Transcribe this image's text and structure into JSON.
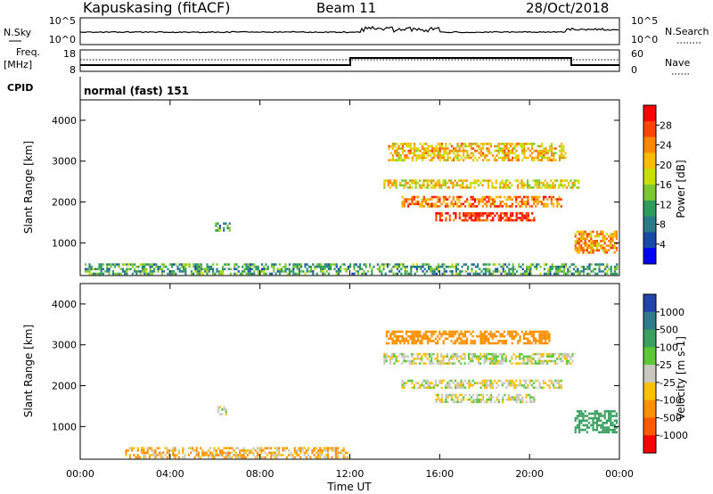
{
  "header": {
    "station": "Kapuskasing (fitACF)",
    "beam": "Beam 11",
    "date": "28/Oct/2018"
  },
  "panels": {
    "nsky_label": "N.Sky",
    "nsearch_label": "N.Search",
    "freq_label": "Freq.",
    "freq_unit": "[MHz]",
    "nave_label": "Nave",
    "cpid_label": "CPID",
    "cpid_value": "normal (fast) 151",
    "nsky_ticks": [
      "10^5",
      "10^0"
    ],
    "nsearch_ticks": [
      "10^5",
      "10^0"
    ],
    "freq_ticks": [
      "18",
      "8"
    ],
    "nave_ticks": [
      "60",
      "0"
    ]
  },
  "colorbars": {
    "power": {
      "label": "Power [dB]",
      "ticks": [
        "28",
        "24",
        "20",
        "16",
        "12",
        "8",
        "4"
      ],
      "colors": [
        "#ff0000",
        "#ff4400",
        "#ff8800",
        "#ffbb00",
        "#c8e000",
        "#7cc830",
        "#2e9c5a",
        "#2a7a88",
        "#1a4aa8",
        "#0000ff"
      ]
    },
    "velocity": {
      "label": "Velocity [m s-1]",
      "ticks": [
        "1000",
        "500",
        "100",
        "25",
        "-25",
        "-100",
        "-500",
        "-1000"
      ],
      "colors": [
        "#2244aa",
        "#2f7d8a",
        "#3aa060",
        "#5cc838",
        "#c8c8c0",
        "#ffc000",
        "#ff9000",
        "#ff5a00",
        "#ff0000"
      ]
    }
  },
  "chart_data": [
    {
      "type": "heatmap",
      "title": "",
      "xlabel": "Time UT",
      "ylabel": "Slant Range [km]",
      "xticks": [
        "00:00",
        "04:00",
        "08:00",
        "12:00",
        "16:00",
        "20:00",
        "00:00"
      ],
      "yticks": [
        "1000",
        "2000",
        "3000",
        "4000"
      ],
      "xlim": [
        0,
        24
      ],
      "ylim": [
        200,
        4500
      ],
      "value_label": "Power [dB]",
      "bands": [
        {
          "t": [
            0.2,
            24
          ],
          "r": [
            200,
            500
          ],
          "v": 10
        },
        {
          "t": [
            6.0,
            6.7
          ],
          "r": [
            1250,
            1500
          ],
          "v": 10
        },
        {
          "t": [
            13.7,
            21.7
          ],
          "r": [
            2950,
            3450
          ],
          "v": 20
        },
        {
          "t": [
            13.5,
            22.3
          ],
          "r": [
            2300,
            2550
          ],
          "v": 18
        },
        {
          "t": [
            14.3,
            21.5
          ],
          "r": [
            1850,
            2150
          ],
          "v": 24
        },
        {
          "t": [
            15.8,
            20.3
          ],
          "r": [
            1500,
            1750
          ],
          "v": 28
        },
        {
          "t": [
            22.0,
            24
          ],
          "r": [
            700,
            1300
          ],
          "v": 22
        }
      ]
    },
    {
      "type": "heatmap",
      "title": "",
      "xlabel": "Time UT",
      "ylabel": "Slant Range [km]",
      "xticks": [
        "00:00",
        "04:00",
        "08:00",
        "12:00",
        "16:00",
        "20:00",
        "00:00"
      ],
      "yticks": [
        "1000",
        "2000",
        "3000",
        "4000"
      ],
      "xlim": [
        0,
        24
      ],
      "ylim": [
        200,
        4500
      ],
      "value_label": "Velocity [m s-1]",
      "bands": [
        {
          "t": [
            2.0,
            12.0
          ],
          "r": [
            200,
            500
          ],
          "v": -50
        },
        {
          "t": [
            6.1,
            6.6
          ],
          "r": [
            1250,
            1500
          ],
          "v": 0
        },
        {
          "t": [
            13.6,
            21.0
          ],
          "r": [
            3000,
            3350
          ],
          "v": -200
        },
        {
          "t": [
            13.5,
            22.0
          ],
          "r": [
            2500,
            2800
          ],
          "v": 0
        },
        {
          "t": [
            14.3,
            21.5
          ],
          "r": [
            1900,
            2150
          ],
          "v": 0
        },
        {
          "t": [
            15.8,
            20.3
          ],
          "r": [
            1550,
            1800
          ],
          "v": 0
        },
        {
          "t": [
            22.0,
            24
          ],
          "r": [
            800,
            1400
          ],
          "v": 150
        }
      ]
    }
  ]
}
